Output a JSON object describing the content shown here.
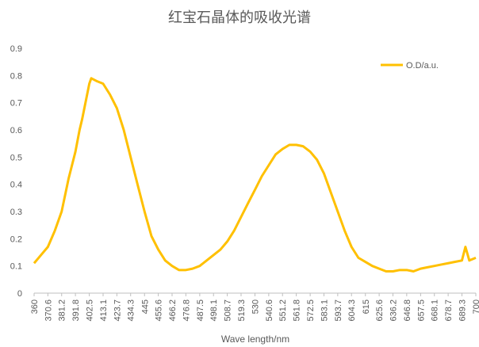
{
  "chart_data": {
    "type": "line",
    "title": "红宝石晶体的吸收光谱",
    "x_label": "Wave length/nm",
    "xlim": [
      360,
      700
    ],
    "ylim": [
      0,
      0.9
    ],
    "xticks": [
      360,
      370.6,
      381.2,
      391.8,
      402.5,
      413.1,
      423.7,
      434.3,
      445,
      455.6,
      466.2,
      476.8,
      487.5,
      498.1,
      508.7,
      519.3,
      530,
      540.6,
      551.2,
      561.8,
      572.5,
      583.1,
      593.7,
      604.3,
      615,
      625.6,
      636.2,
      646.8,
      657.5,
      668.1,
      678.7,
      689.3,
      700
    ],
    "yticks": [
      0,
      0.1,
      0.2,
      0.3,
      0.4,
      0.5,
      0.6,
      0.7,
      0.8,
      0.9
    ],
    "grid": false,
    "legend": "top-right",
    "x": [
      360,
      365.3,
      370.6,
      376,
      381.2,
      386.5,
      391.8,
      395,
      397,
      402.5,
      404,
      408,
      413.1,
      418.4,
      423.7,
      429,
      434.3,
      439.6,
      445,
      450.3,
      455.6,
      460.9,
      466.2,
      471.5,
      476.8,
      482,
      487.5,
      492.8,
      498.1,
      503.4,
      508.7,
      514,
      519.3,
      524.6,
      530,
      535.3,
      540.6,
      545.9,
      551.2,
      556.5,
      561.8,
      567,
      572.5,
      577.8,
      583.1,
      588.4,
      593.7,
      599,
      604.3,
      609.6,
      615,
      620.3,
      625.6,
      630.9,
      636.2,
      641.5,
      646.8,
      652,
      657.5,
      662.8,
      668.1,
      673.4,
      678.7,
      684,
      689.3,
      692,
      695,
      700
    ],
    "series": [
      {
        "name": "O.D/a.u.",
        "color": "#ffc000",
        "values": [
          0.11,
          0.14,
          0.17,
          0.23,
          0.3,
          0.42,
          0.52,
          0.6,
          0.64,
          0.77,
          0.79,
          0.78,
          0.77,
          0.73,
          0.68,
          0.6,
          0.5,
          0.4,
          0.3,
          0.21,
          0.16,
          0.12,
          0.1,
          0.085,
          0.085,
          0.09,
          0.1,
          0.12,
          0.14,
          0.16,
          0.19,
          0.23,
          0.28,
          0.33,
          0.38,
          0.43,
          0.47,
          0.51,
          0.53,
          0.545,
          0.545,
          0.54,
          0.52,
          0.49,
          0.44,
          0.37,
          0.3,
          0.23,
          0.17,
          0.13,
          0.115,
          0.1,
          0.09,
          0.08,
          0.08,
          0.085,
          0.085,
          0.08,
          0.09,
          0.095,
          0.1,
          0.105,
          0.11,
          0.115,
          0.12,
          0.17,
          0.12,
          0.13
        ]
      }
    ]
  }
}
